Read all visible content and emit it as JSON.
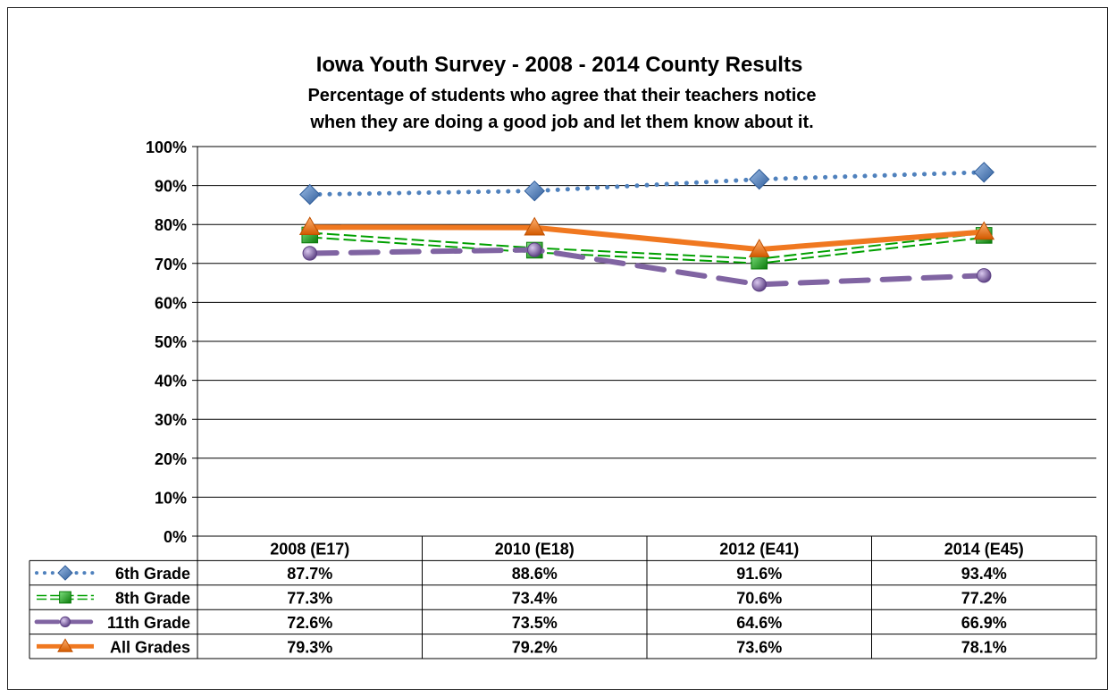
{
  "chart_data": {
    "type": "line",
    "title": "Iowa Youth Survey - 2008 - 2014 County Results",
    "subtitle_lines": [
      "Percentage of students who agree that their teachers notice",
      "when they are doing a good job and let them know about it."
    ],
    "categories": [
      "2008 (E17)",
      "2010 (E18)",
      "2012 (E41)",
      "2014 (E45)"
    ],
    "y_ticks": [
      "0%",
      "10%",
      "20%",
      "30%",
      "40%",
      "50%",
      "60%",
      "70%",
      "80%",
      "90%",
      "100%"
    ],
    "ylim": [
      0,
      100
    ],
    "grid": true,
    "legend_placement": "data-table-left",
    "series": [
      {
        "name": "6th Grade",
        "values": [
          87.7,
          88.6,
          91.6,
          93.4
        ],
        "labels": [
          "87.7%",
          "88.6%",
          "91.6%",
          "93.4%"
        ],
        "color": "#4F81BD",
        "marker": "diamond",
        "line_style": "dotted"
      },
      {
        "name": "8th Grade",
        "values": [
          77.3,
          73.4,
          70.6,
          77.2
        ],
        "labels": [
          "77.3%",
          "73.4%",
          "70.6%",
          "77.2%"
        ],
        "color": "#00A000",
        "marker": "square",
        "line_style": "double"
      },
      {
        "name": "11th Grade",
        "values": [
          72.6,
          73.5,
          64.6,
          66.9
        ],
        "labels": [
          "72.6%",
          "73.5%",
          "64.6%",
          "66.9%"
        ],
        "color": "#8064A2",
        "marker": "circle",
        "line_style": "dashed"
      },
      {
        "name": "All Grades",
        "values": [
          79.3,
          79.2,
          73.6,
          78.1
        ],
        "labels": [
          "79.3%",
          "79.2%",
          "73.6%",
          "78.1%"
        ],
        "color": "#F07820",
        "marker": "triangle",
        "line_style": "solid"
      }
    ]
  }
}
